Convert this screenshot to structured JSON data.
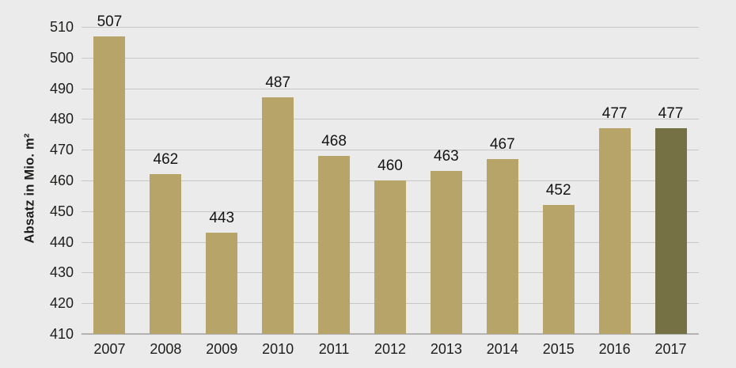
{
  "chart_data": {
    "type": "bar",
    "title": "",
    "categories": [
      "2007",
      "2008",
      "2009",
      "2010",
      "2011",
      "2012",
      "2013",
      "2014",
      "2015",
      "2016",
      "2017"
    ],
    "values": [
      507,
      462,
      443,
      487,
      468,
      460,
      463,
      467,
      452,
      477,
      477
    ],
    "xlabel": "",
    "ylabel": "Absatz in Mio. m²",
    "ylim": [
      410,
      510
    ],
    "ytick_step": 10,
    "yticks": [
      410,
      420,
      430,
      440,
      450,
      460,
      470,
      480,
      490,
      500,
      510
    ],
    "grid": true,
    "legend_position": "none",
    "data_labels": true,
    "highlight_index": 10,
    "colors": {
      "bar": "#b6a469",
      "bar_highlight": "#767045",
      "background": "#ebebeb",
      "gridline": "#c7c7c7",
      "baseline": "#b3b3b3",
      "text": "#1d1d1b"
    }
  }
}
